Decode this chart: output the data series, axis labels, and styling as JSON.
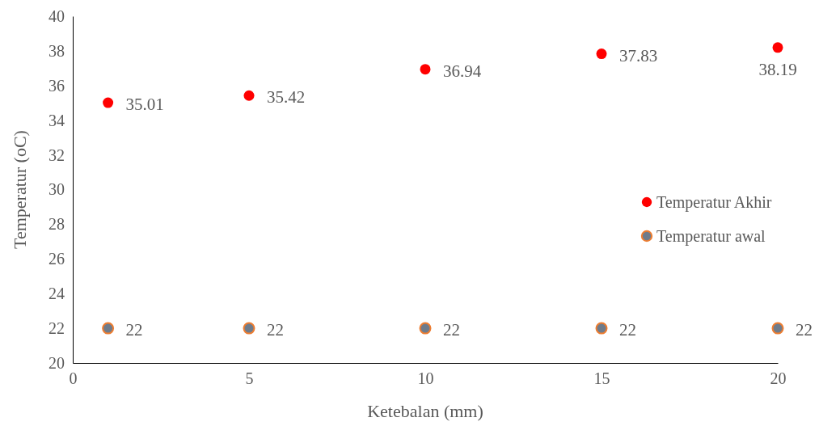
{
  "chart_data": {
    "type": "scatter",
    "xlabel": "Ketebalan (mm)",
    "ylabel": "Temperatur (oC)",
    "xlim": [
      0,
      20
    ],
    "xticks": [
      0,
      5,
      10,
      15,
      20
    ],
    "ylim": [
      20,
      40
    ],
    "yticks": [
      20,
      22,
      24,
      26,
      28,
      30,
      32,
      34,
      36,
      38,
      40
    ],
    "x": [
      1,
      5,
      10,
      15,
      20
    ],
    "series": [
      {
        "name": "Temperatur Akhir",
        "color": "#ff0000",
        "values": [
          35.01,
          35.42,
          36.94,
          37.83,
          38.19
        ]
      },
      {
        "name": "Temperatur awal",
        "color": "#6e7b8b",
        "values": [
          22,
          22,
          22,
          22,
          22
        ]
      }
    ],
    "data_labels": true,
    "legend": "right",
    "marker": "circle",
    "grid": false
  }
}
